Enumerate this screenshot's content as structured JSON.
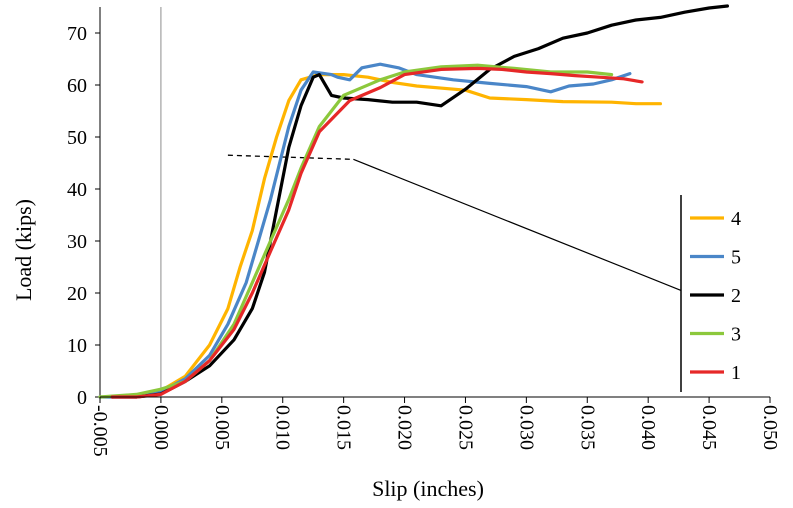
{
  "chart_data": {
    "type": "line",
    "title": "",
    "xlabel": "Slip (inches)",
    "ylabel": "Load (kips)",
    "xlim": [
      -0.005,
      0.05
    ],
    "ylim": [
      0,
      75
    ],
    "xticks": [
      "-0.005",
      "0.000",
      "0.005",
      "0.010",
      "0.015",
      "0.020",
      "0.025",
      "0.030",
      "0.035",
      "0.040",
      "0.045",
      "0.050"
    ],
    "yticks": [
      "0",
      "10",
      "20",
      "30",
      "40",
      "50",
      "60",
      "70"
    ],
    "legend_position": "right",
    "grid": false,
    "annotation": "dashed leader line from the curves at about 46 kips to the legend",
    "series": [
      {
        "name": "4",
        "color": "#FFB400",
        "points": [
          [
            -0.004,
            0
          ],
          [
            -0.001,
            0.5
          ],
          [
            0.0,
            1.2
          ],
          [
            0.002,
            4
          ],
          [
            0.004,
            10
          ],
          [
            0.0055,
            17
          ],
          [
            0.0065,
            25
          ],
          [
            0.0075,
            32
          ],
          [
            0.0085,
            42
          ],
          [
            0.0095,
            50
          ],
          [
            0.0105,
            57
          ],
          [
            0.0115,
            61
          ],
          [
            0.013,
            62
          ],
          [
            0.015,
            62
          ],
          [
            0.017,
            61.5
          ],
          [
            0.019,
            60.5
          ],
          [
            0.021,
            59.8
          ],
          [
            0.025,
            59
          ],
          [
            0.027,
            57.5
          ],
          [
            0.03,
            57.2
          ],
          [
            0.033,
            56.8
          ],
          [
            0.037,
            56.7
          ],
          [
            0.039,
            56.4
          ],
          [
            0.041,
            56.4
          ]
        ]
      },
      {
        "name": "5",
        "color": "#4A86C8",
        "points": [
          [
            -0.005,
            0
          ],
          [
            -0.002,
            0
          ],
          [
            0.0,
            1
          ],
          [
            0.002,
            3.5
          ],
          [
            0.004,
            8
          ],
          [
            0.0055,
            14
          ],
          [
            0.007,
            22
          ],
          [
            0.008,
            30
          ],
          [
            0.009,
            38
          ],
          [
            0.0105,
            52
          ],
          [
            0.0115,
            59
          ],
          [
            0.0125,
            62.5
          ],
          [
            0.014,
            62
          ],
          [
            0.0145,
            61.5
          ],
          [
            0.0155,
            61
          ],
          [
            0.0165,
            63.3
          ],
          [
            0.018,
            64
          ],
          [
            0.0195,
            63.3
          ],
          [
            0.021,
            62
          ],
          [
            0.024,
            61
          ],
          [
            0.027,
            60.3
          ],
          [
            0.03,
            59.7
          ],
          [
            0.032,
            58.7
          ],
          [
            0.0335,
            59.8
          ],
          [
            0.0355,
            60.2
          ],
          [
            0.037,
            61
          ],
          [
            0.0385,
            62.2
          ]
        ]
      },
      {
        "name": "2",
        "color": "#000000",
        "points": [
          [
            -0.004,
            0
          ],
          [
            -0.002,
            0
          ],
          [
            0.0,
            0.6
          ],
          [
            0.002,
            3
          ],
          [
            0.004,
            6
          ],
          [
            0.006,
            11
          ],
          [
            0.0075,
            17
          ],
          [
            0.0085,
            24
          ],
          [
            0.0095,
            36
          ],
          [
            0.0105,
            48
          ],
          [
            0.0115,
            56
          ],
          [
            0.0125,
            61.5
          ],
          [
            0.013,
            62
          ],
          [
            0.014,
            58
          ],
          [
            0.015,
            57.5
          ],
          [
            0.017,
            57.2
          ],
          [
            0.019,
            56.7
          ],
          [
            0.021,
            56.7
          ],
          [
            0.023,
            56
          ],
          [
            0.025,
            59.2
          ],
          [
            0.027,
            63
          ],
          [
            0.029,
            65.5
          ],
          [
            0.031,
            67
          ],
          [
            0.033,
            69
          ],
          [
            0.035,
            70
          ],
          [
            0.037,
            71.5
          ],
          [
            0.039,
            72.5
          ],
          [
            0.041,
            73
          ],
          [
            0.043,
            74
          ],
          [
            0.045,
            74.8
          ],
          [
            0.0465,
            75.2
          ]
        ]
      },
      {
        "name": "3",
        "color": "#8CC83C",
        "points": [
          [
            -0.005,
            0
          ],
          [
            -0.002,
            0.5
          ],
          [
            0.0,
            1.5
          ],
          [
            0.002,
            3
          ],
          [
            0.004,
            7
          ],
          [
            0.006,
            14
          ],
          [
            0.0075,
            22
          ],
          [
            0.009,
            30
          ],
          [
            0.0105,
            38
          ],
          [
            0.0115,
            44
          ],
          [
            0.013,
            52
          ],
          [
            0.015,
            58
          ],
          [
            0.016,
            59
          ],
          [
            0.018,
            61
          ],
          [
            0.02,
            62.5
          ],
          [
            0.023,
            63.5
          ],
          [
            0.026,
            63.8
          ],
          [
            0.029,
            63.2
          ],
          [
            0.032,
            62.5
          ],
          [
            0.035,
            62.5
          ],
          [
            0.037,
            62
          ]
        ]
      },
      {
        "name": "1",
        "color": "#E62828",
        "points": [
          [
            -0.004,
            0
          ],
          [
            -0.002,
            0
          ],
          [
            0.0,
            0.5
          ],
          [
            0.002,
            3
          ],
          [
            0.004,
            7
          ],
          [
            0.006,
            13
          ],
          [
            0.0075,
            20
          ],
          [
            0.009,
            28
          ],
          [
            0.0105,
            36
          ],
          [
            0.0115,
            43
          ],
          [
            0.013,
            51
          ],
          [
            0.0155,
            57
          ],
          [
            0.018,
            59.5
          ],
          [
            0.02,
            62
          ],
          [
            0.023,
            63
          ],
          [
            0.026,
            63.2
          ],
          [
            0.028,
            63
          ],
          [
            0.03,
            62.5
          ],
          [
            0.032,
            62.2
          ],
          [
            0.034,
            61.8
          ],
          [
            0.036,
            61.5
          ],
          [
            0.038,
            61.2
          ],
          [
            0.0395,
            60.6
          ]
        ]
      }
    ]
  }
}
